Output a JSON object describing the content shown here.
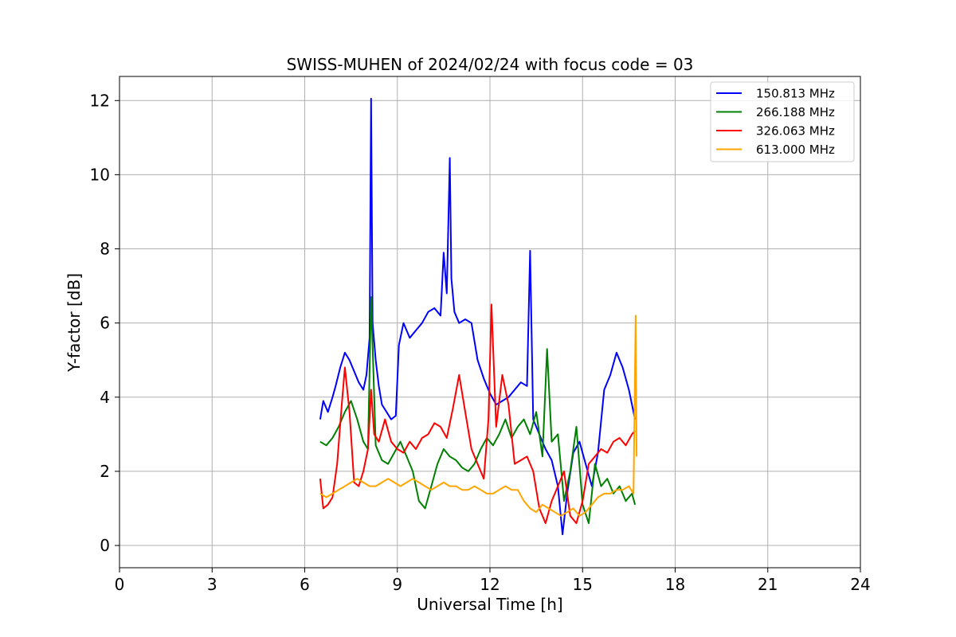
{
  "chart_data": {
    "type": "line",
    "title": "SWISS-MUHEN of 2024/02/24 with focus code = 03",
    "xlabel": "Universal Time [h]",
    "ylabel": "Y-factor [dB]",
    "xlim": [
      0,
      24
    ],
    "ylim": [
      -0.6,
      12.65
    ],
    "xticks": [
      0,
      3,
      6,
      9,
      12,
      15,
      18,
      21,
      24
    ],
    "yticks": [
      0,
      2,
      4,
      6,
      8,
      10,
      12
    ],
    "grid": true,
    "legend_position": "top-right",
    "series": [
      {
        "name": "150.813 MHz",
        "color": "#0000ff",
        "x": [
          6.5,
          6.6,
          6.75,
          6.9,
          7.0,
          7.15,
          7.3,
          7.45,
          7.6,
          7.75,
          7.9,
          8.0,
          8.1,
          8.15,
          8.2,
          8.3,
          8.4,
          8.5,
          8.65,
          8.8,
          8.95,
          9.05,
          9.2,
          9.4,
          9.6,
          9.8,
          10.0,
          10.2,
          10.4,
          10.5,
          10.6,
          10.7,
          10.75,
          10.85,
          11.0,
          11.2,
          11.4,
          11.6,
          11.8,
          12.0,
          12.2,
          12.4,
          12.6,
          12.8,
          13.0,
          13.2,
          13.3,
          13.4,
          13.6,
          13.8,
          14.0,
          14.2,
          14.35,
          14.5,
          14.7,
          14.9,
          15.1,
          15.3,
          15.5,
          15.7,
          15.9,
          16.1,
          16.3,
          16.5,
          16.7
        ],
        "y": [
          3.4,
          3.9,
          3.6,
          4.0,
          4.3,
          4.8,
          5.2,
          5.0,
          4.7,
          4.4,
          4.2,
          4.6,
          5.6,
          12.05,
          6.0,
          5.0,
          4.3,
          3.8,
          3.6,
          3.4,
          3.5,
          5.4,
          6.0,
          5.6,
          5.8,
          6.0,
          6.3,
          6.4,
          6.2,
          7.9,
          6.8,
          10.45,
          7.2,
          6.3,
          6.0,
          6.1,
          6.0,
          5.0,
          4.5,
          4.1,
          3.8,
          3.9,
          4.0,
          4.2,
          4.4,
          4.3,
          7.95,
          3.4,
          3.0,
          2.6,
          2.3,
          1.6,
          0.3,
          1.4,
          2.5,
          2.8,
          2.2,
          1.6,
          2.5,
          4.2,
          4.6,
          5.2,
          4.8,
          4.2,
          3.4
        ]
      },
      {
        "name": "266.188 MHz",
        "color": "#008000",
        "x": [
          6.5,
          6.7,
          6.9,
          7.1,
          7.3,
          7.5,
          7.7,
          7.9,
          8.05,
          8.15,
          8.3,
          8.5,
          8.7,
          8.9,
          9.1,
          9.3,
          9.5,
          9.7,
          9.9,
          10.1,
          10.3,
          10.5,
          10.7,
          10.9,
          11.1,
          11.3,
          11.5,
          11.7,
          11.9,
          12.1,
          12.3,
          12.5,
          12.7,
          12.9,
          13.1,
          13.3,
          13.5,
          13.7,
          13.85,
          14.0,
          14.2,
          14.4,
          14.6,
          14.8,
          15.0,
          15.2,
          15.4,
          15.6,
          15.8,
          16.0,
          16.2,
          16.4,
          16.6,
          16.7
        ],
        "y": [
          2.8,
          2.7,
          2.9,
          3.2,
          3.6,
          3.9,
          3.4,
          2.8,
          2.6,
          6.7,
          2.7,
          2.3,
          2.2,
          2.5,
          2.8,
          2.4,
          2.0,
          1.2,
          1.0,
          1.6,
          2.2,
          2.6,
          2.4,
          2.3,
          2.1,
          2.0,
          2.2,
          2.6,
          2.9,
          2.7,
          3.0,
          3.4,
          2.9,
          3.2,
          3.4,
          3.0,
          3.6,
          2.4,
          5.3,
          2.8,
          3.0,
          1.2,
          2.0,
          3.2,
          1.1,
          0.6,
          2.2,
          1.6,
          1.8,
          1.4,
          1.6,
          1.2,
          1.4,
          1.1
        ]
      },
      {
        "name": "326.063 MHz",
        "color": "#ff0000",
        "x": [
          6.5,
          6.6,
          6.75,
          6.9,
          7.05,
          7.2,
          7.3,
          7.45,
          7.6,
          7.75,
          7.9,
          8.05,
          8.15,
          8.25,
          8.4,
          8.6,
          8.8,
          9.0,
          9.2,
          9.4,
          9.6,
          9.8,
          10.0,
          10.2,
          10.4,
          10.6,
          10.8,
          11.0,
          11.2,
          11.4,
          11.6,
          11.8,
          11.95,
          12.05,
          12.2,
          12.4,
          12.6,
          12.8,
          13.0,
          13.2,
          13.4,
          13.6,
          13.8,
          14.0,
          14.2,
          14.4,
          14.6,
          14.8,
          15.0,
          15.2,
          15.4,
          15.6,
          15.8,
          16.0,
          16.2,
          16.4,
          16.6,
          16.7
        ],
        "y": [
          1.8,
          1.0,
          1.1,
          1.3,
          2.2,
          3.8,
          4.8,
          3.6,
          1.7,
          1.6,
          2.0,
          2.6,
          4.2,
          3.0,
          2.8,
          3.4,
          2.8,
          2.6,
          2.5,
          2.8,
          2.6,
          2.9,
          3.0,
          3.3,
          3.2,
          2.9,
          3.7,
          4.6,
          3.6,
          2.6,
          2.2,
          1.8,
          3.4,
          6.5,
          3.2,
          4.6,
          3.8,
          2.2,
          2.3,
          2.4,
          2.0,
          1.0,
          0.6,
          1.2,
          1.6,
          2.0,
          0.8,
          0.6,
          1.2,
          2.2,
          2.4,
          2.6,
          2.5,
          2.8,
          2.9,
          2.7,
          3.0,
          3.1
        ]
      },
      {
        "name": "613.000 MHz",
        "color": "#ffa500",
        "x": [
          6.5,
          6.7,
          6.9,
          7.1,
          7.3,
          7.5,
          7.7,
          7.9,
          8.1,
          8.3,
          8.5,
          8.7,
          8.9,
          9.1,
          9.3,
          9.5,
          9.7,
          9.9,
          10.1,
          10.3,
          10.5,
          10.7,
          10.9,
          11.1,
          11.3,
          11.5,
          11.7,
          11.9,
          12.1,
          12.3,
          12.5,
          12.7,
          12.9,
          13.1,
          13.3,
          13.5,
          13.7,
          13.9,
          14.1,
          14.3,
          14.5,
          14.7,
          14.9,
          15.1,
          15.3,
          15.5,
          15.7,
          15.9,
          16.1,
          16.3,
          16.5,
          16.65,
          16.72,
          16.75
        ],
        "y": [
          1.4,
          1.3,
          1.4,
          1.5,
          1.6,
          1.7,
          1.8,
          1.7,
          1.6,
          1.6,
          1.7,
          1.8,
          1.7,
          1.6,
          1.7,
          1.8,
          1.7,
          1.6,
          1.5,
          1.6,
          1.7,
          1.6,
          1.6,
          1.5,
          1.5,
          1.6,
          1.5,
          1.4,
          1.4,
          1.5,
          1.6,
          1.5,
          1.5,
          1.2,
          1.0,
          0.9,
          1.1,
          1.0,
          0.9,
          0.8,
          0.9,
          1.0,
          0.8,
          0.9,
          1.1,
          1.3,
          1.4,
          1.4,
          1.5,
          1.5,
          1.6,
          1.4,
          6.2,
          2.4
        ]
      }
    ]
  }
}
